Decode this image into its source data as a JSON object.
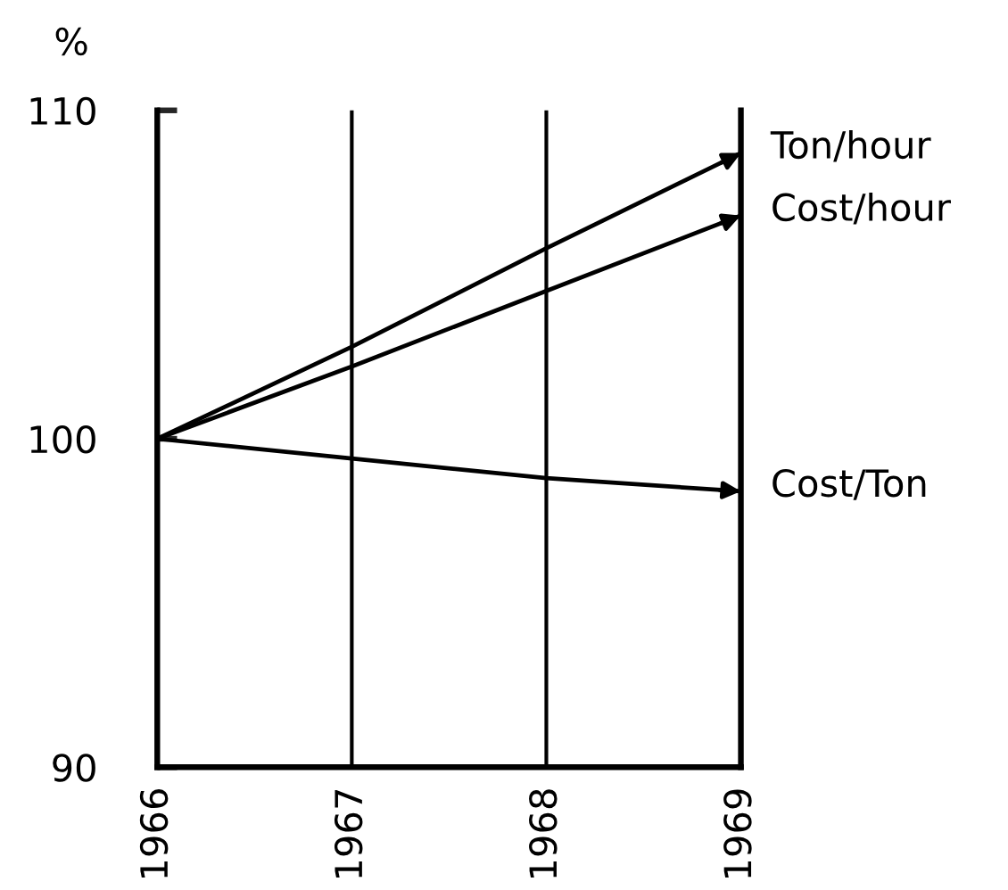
{
  "chart_data": {
    "type": "line",
    "ylabel": "%",
    "x": [
      1966,
      1967,
      1968,
      1969
    ],
    "series": [
      {
        "name": "Ton/hour",
        "color": "#000000",
        "values": [
          100,
          102.8,
          105.8,
          108.7
        ]
      },
      {
        "name": "Cost/hour",
        "color": "#000000",
        "values": [
          100,
          102.2,
          104.5,
          106.8
        ]
      },
      {
        "name": "Cost/Ton",
        "color": "#000000",
        "values": [
          100,
          99.4,
          98.8,
          98.4
        ]
      }
    ],
    "xlim": [
      1966,
      1969
    ],
    "xticks": [
      1966,
      1967,
      1968,
      1969
    ],
    "ylim": [
      90,
      110
    ],
    "yticks": [
      90,
      100,
      110
    ],
    "grid": "x",
    "legend": "right",
    "marker": "none",
    "line_style": "solid"
  }
}
